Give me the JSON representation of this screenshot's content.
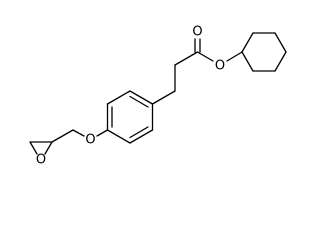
{
  "nodes": [
    {
      "label": "O"
    },
    {
      "label": "O"
    },
    {
      "label": "O"
    },
    {
      "label": "O"
    }
  ]
}
